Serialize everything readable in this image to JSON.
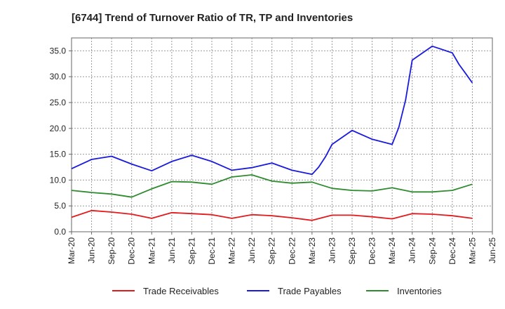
{
  "chart_data": {
    "type": "line",
    "title": "[6744]  Trend of Turnover Ratio of TR, TP and Inventories",
    "xlabel": "",
    "ylabel": "",
    "ylim": [
      0,
      37.5
    ],
    "yticks": [
      0,
      5,
      10,
      15,
      20,
      25,
      30,
      35
    ],
    "ytick_labels": [
      "0.0",
      "5.0",
      "10.0",
      "15.0",
      "20.0",
      "25.0",
      "30.0",
      "35.0"
    ],
    "x_tick_labels": [
      "Mar-20",
      "Jun-20",
      "Sep-20",
      "Dec-20",
      "Mar-21",
      "Jun-21",
      "Sep-21",
      "Dec-21",
      "Mar-22",
      "Jun-22",
      "Sep-22",
      "Dec-22",
      "Mar-23",
      "Jun-23",
      "Sep-23",
      "Dec-23",
      "Mar-24",
      "Jun-24",
      "Sep-24",
      "Dec-24",
      "Mar-25",
      "Jun-25"
    ],
    "grid": true,
    "legend_position": "bottom",
    "series": [
      {
        "name": "Trade Receivables",
        "color": "#e31a1c",
        "x": [
          0,
          1,
          2,
          3,
          4,
          5,
          6,
          7,
          8,
          9,
          10,
          11,
          12,
          13,
          14,
          15,
          16,
          17,
          18,
          19,
          20
        ],
        "values": [
          2.8,
          4.1,
          3.8,
          3.4,
          2.6,
          3.7,
          3.5,
          3.3,
          2.6,
          3.3,
          3.1,
          2.7,
          2.2,
          3.2,
          3.2,
          2.9,
          2.5,
          3.5,
          3.4,
          3.1,
          2.6
        ]
      },
      {
        "name": "Trade Payables",
        "color": "#1a1adf",
        "x": [
          0,
          1,
          2,
          3,
          4,
          5,
          6,
          7,
          8,
          9,
          10,
          11,
          12,
          12.33,
          12.67,
          13,
          14,
          15,
          16,
          16.33,
          16.67,
          17,
          18,
          19,
          19.33,
          19.67,
          20
        ],
        "values": [
          12.2,
          14.0,
          14.6,
          13.1,
          11.8,
          13.6,
          14.8,
          13.6,
          11.9,
          12.4,
          13.3,
          11.9,
          11.1,
          12.5,
          14.5,
          16.9,
          19.6,
          17.9,
          16.9,
          20.2,
          25.5,
          33.2,
          35.9,
          34.6,
          32.4,
          30.6,
          28.8
        ]
      },
      {
        "name": "Inventories",
        "color": "#2e8b2e",
        "x": [
          0,
          1,
          2,
          3,
          4,
          5,
          6,
          7,
          8,
          9,
          10,
          11,
          12,
          13,
          14,
          15,
          16,
          17,
          18,
          19,
          20
        ],
        "values": [
          8.0,
          7.6,
          7.3,
          6.7,
          8.3,
          9.7,
          9.6,
          9.2,
          10.6,
          11.0,
          9.8,
          9.4,
          9.6,
          8.4,
          8.0,
          7.9,
          8.5,
          7.7,
          7.7,
          8.0,
          9.2
        ]
      }
    ]
  }
}
